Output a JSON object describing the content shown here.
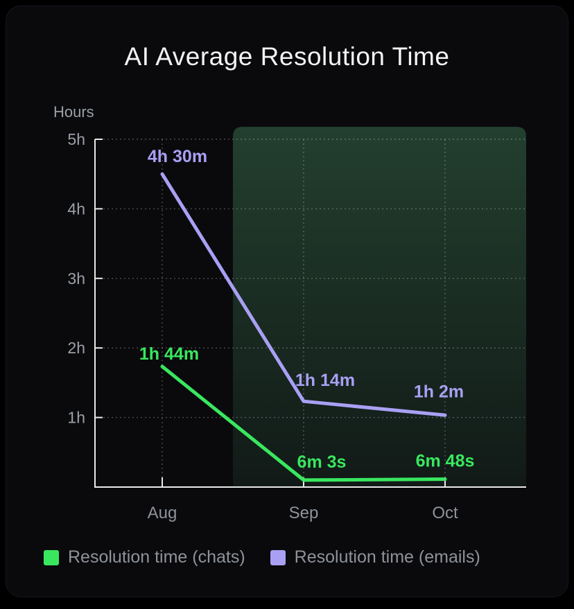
{
  "page": {
    "title": "AI Average Resolution Time"
  },
  "chart_data": {
    "type": "line",
    "title": "AI Average Resolution Time",
    "y_axis_label": "Hours",
    "categories": [
      "Aug",
      "Sep",
      "Oct"
    ],
    "y_ticks": [
      {
        "label": "1h",
        "value": 1
      },
      {
        "label": "2h",
        "value": 2
      },
      {
        "label": "3h",
        "value": 3
      },
      {
        "label": "4h",
        "value": 4
      },
      {
        "label": "5h",
        "value": 5
      }
    ],
    "ylim": [
      0,
      5
    ],
    "grid": true,
    "grid_style": "dotted",
    "legend_position": "bottom-left",
    "highlight_region": {
      "covers_categories": [
        "Sep",
        "Oct"
      ],
      "color": "#53a66f"
    },
    "series": [
      {
        "name": "Resolution time (chats)",
        "color": "#39e75f",
        "values_hours": [
          1.7333,
          0.1008,
          0.1133
        ],
        "point_labels": [
          "1h 44m",
          "6m 3s",
          "6m 48s"
        ]
      },
      {
        "name": "Resolution time (emails)",
        "color": "#a9a0f4",
        "values_hours": [
          4.5,
          1.2333,
          1.0333
        ],
        "point_labels": [
          "4h 30m",
          "1h 14m",
          "1h 2m"
        ]
      }
    ]
  },
  "colors": {
    "background": "#0a0a0d",
    "axis": "#eaeaea",
    "gridline": "rgba(255,255,255,0.27)",
    "tick_text": "#9aa0a6",
    "title_text": "#f3f3f5",
    "legend_text": "#8e9399"
  }
}
